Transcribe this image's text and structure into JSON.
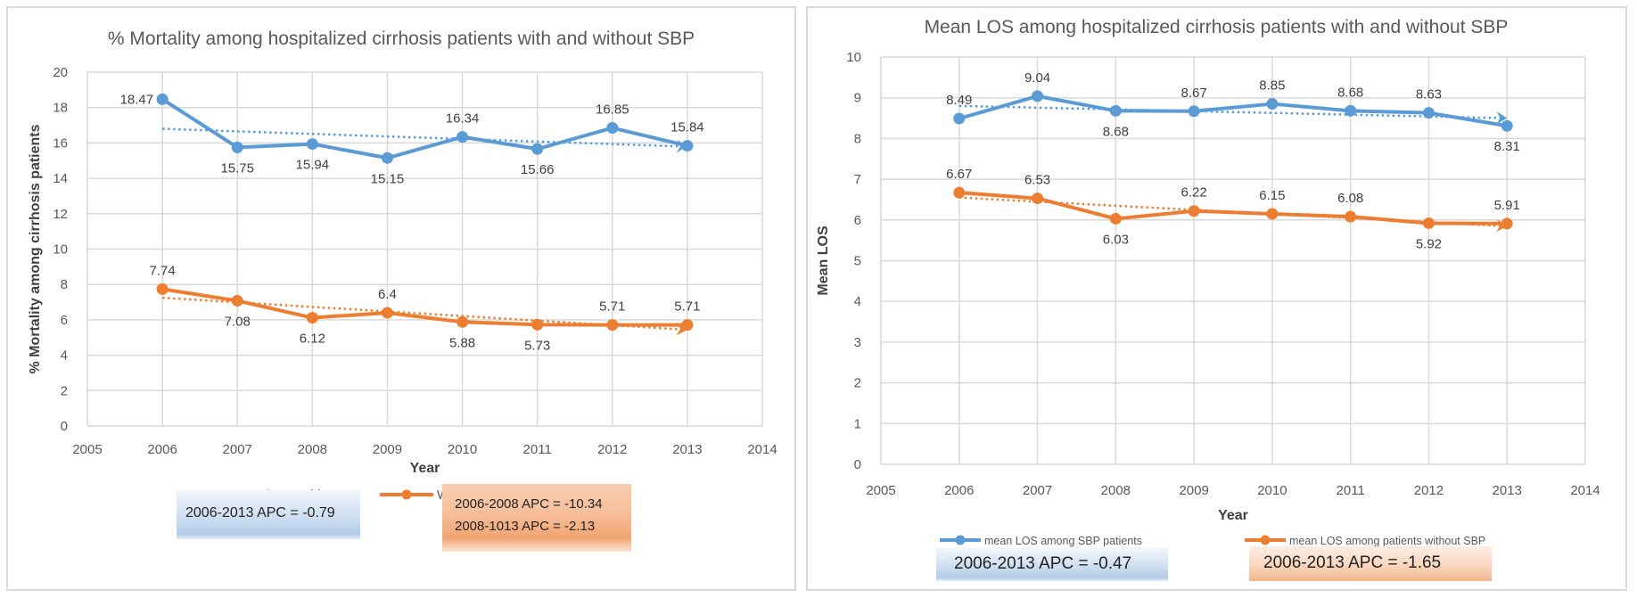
{
  "chart_data": [
    {
      "type": "line",
      "title": "% Mortality among hospitalized cirrhosis patients with and without SBP",
      "xlabel": "Year",
      "ylabel": "% Mortality among cirrhosis patients",
      "xlim": [
        2005,
        2014
      ],
      "ylim": [
        0,
        20
      ],
      "x_ticks": [
        2005,
        2006,
        2007,
        2008,
        2009,
        2010,
        2011,
        2012,
        2013,
        2014
      ],
      "y_ticks": [
        0,
        2,
        4,
        6,
        8,
        10,
        12,
        14,
        16,
        18,
        20
      ],
      "grid": true,
      "legend_position": "bottom",
      "x": [
        2006,
        2007,
        2008,
        2009,
        2010,
        2011,
        2012,
        2013
      ],
      "series": [
        {
          "name": "With SBP",
          "color": "#5b9bd5",
          "values": [
            18.47,
            15.75,
            15.94,
            15.15,
            16.34,
            15.66,
            16.85,
            15.84
          ],
          "label_positions": [
            "left",
            "below",
            "below",
            "below",
            "above",
            "below",
            "above",
            "above"
          ],
          "trendline": {
            "style": "dotted",
            "start": 16.8,
            "end": 15.8,
            "arrow": true
          }
        },
        {
          "name": "Without SBP",
          "color": "#ed7d31",
          "values": [
            7.74,
            7.08,
            6.12,
            6.4,
            5.88,
            5.73,
            5.71,
            5.71
          ],
          "label_positions": [
            "above",
            "below",
            "below",
            "above",
            "below",
            "below",
            "above",
            "above"
          ],
          "trendline": {
            "style": "dotted",
            "start": 7.25,
            "end": 5.45,
            "arrow": true
          }
        }
      ],
      "annotations": [
        {
          "id": "apc-with",
          "color": "blue",
          "lines": [
            "2006-2013 APC = -0.79"
          ]
        },
        {
          "id": "apc-without",
          "color": "orange",
          "lines": [
            "2006-2008 APC = -10.34",
            "2008-1013 APC = -2.13"
          ]
        }
      ]
    },
    {
      "type": "line",
      "title": "Mean LOS among hospitalized cirrhosis patients with and without SBP",
      "xlabel": "Year",
      "ylabel": "Mean LOS",
      "xlim": [
        2005,
        2014
      ],
      "ylim": [
        0,
        10
      ],
      "x_ticks": [
        2005,
        2006,
        2007,
        2008,
        2009,
        2010,
        2011,
        2012,
        2013,
        2014
      ],
      "y_ticks": [
        0,
        1,
        2,
        3,
        4,
        5,
        6,
        7,
        8,
        9,
        10
      ],
      "grid": true,
      "legend_position": "bottom",
      "x": [
        2006,
        2007,
        2008,
        2009,
        2010,
        2011,
        2012,
        2013
      ],
      "series": [
        {
          "name": "mean LOS among SBP patients",
          "color": "#5b9bd5",
          "values": [
            8.49,
            9.04,
            8.68,
            8.67,
            8.85,
            8.68,
            8.63,
            8.31
          ],
          "label_positions": [
            "above",
            "above",
            "below",
            "above",
            "above",
            "above",
            "above",
            "below"
          ],
          "trendline": {
            "style": "dotted",
            "start": 8.8,
            "end": 8.5,
            "arrow": true
          }
        },
        {
          "name": "mean LOS among patients without SBP",
          "color": "#ed7d31",
          "values": [
            6.67,
            6.53,
            6.03,
            6.22,
            6.15,
            6.08,
            5.92,
            5.91
          ],
          "label_positions": [
            "above",
            "above",
            "below",
            "above",
            "above",
            "above",
            "below",
            "above"
          ],
          "trendline": {
            "style": "dotted",
            "start": 6.55,
            "end": 5.85,
            "arrow": true
          }
        }
      ],
      "annotations": [
        {
          "id": "apc-with",
          "color": "blue",
          "lines": [
            "2006-2013 APC = -0.47"
          ]
        },
        {
          "id": "apc-without",
          "color": "orange",
          "lines": [
            "2006-2013 APC = -1.65"
          ]
        }
      ]
    }
  ]
}
